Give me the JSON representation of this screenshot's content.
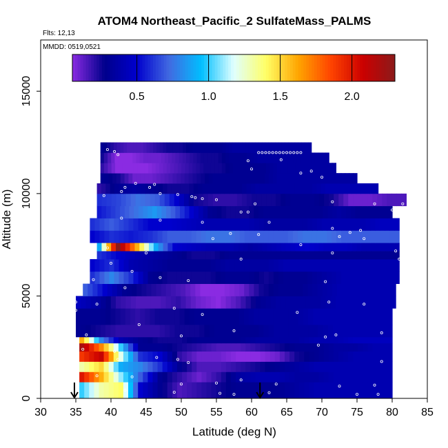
{
  "chart_data": {
    "type": "heatmap",
    "title": "ATOM4 Northeast_Pacific_2 SulfateMass_PALMS",
    "flights_label": "Flts: 12,13",
    "mmdd_label": "MMDD: 0519,0521",
    "xlabel": "Latitude (deg N)",
    "ylabel": "Altitude (m)",
    "xlim": [
      30,
      85
    ],
    "ylim": [
      0,
      17500
    ],
    "x_ticks": [
      "30",
      "35",
      "40",
      "45",
      "50",
      "55",
      "60",
      "65",
      "70",
      "75",
      "80",
      "85"
    ],
    "y_ticks": [
      "0",
      "5000",
      "10000",
      "15000"
    ],
    "colorbar": {
      "range": [
        0.05,
        2.3
      ],
      "ticks": [
        "0.5",
        "1.0",
        "1.5",
        "2.0"
      ],
      "tick_values": [
        0.5,
        1.0,
        1.5,
        2.0
      ],
      "colors": [
        "#8a2be2",
        "#00008b",
        "#0000cd",
        "#4169e1",
        "#00bfff",
        "#e0ffff",
        "#ffff66",
        "#ffa500",
        "#ff4500",
        "#cc0000",
        "#8b1a1a"
      ]
    },
    "arrows_latitude": [
      34.8,
      61.2
    ],
    "bins": [
      {
        "alt": [
          0,
          800
        ],
        "lat": [
          35.5,
          80
        ],
        "values": [
          1.0,
          1.3,
          1.4,
          0.5,
          0.3,
          0.15,
          0.2,
          0.25,
          0.3,
          0.3,
          0.3,
          0.35,
          0.4,
          0.4,
          0.4,
          0.4
        ]
      },
      {
        "alt": [
          800,
          1300
        ],
        "lat": [
          35.5,
          80
        ],
        "values": [
          2.0,
          1.6,
          1.1,
          0.7,
          0.3,
          0.2,
          0.1,
          0.2,
          0.35,
          0.4,
          0.4,
          0.35,
          0.35,
          0.4,
          0.4,
          0.4
        ]
      },
      {
        "alt": [
          1300,
          1800
        ],
        "lat": [
          35.5,
          80
        ],
        "values": [
          1.3,
          1.5,
          0.9,
          0.8,
          0.6,
          0.3,
          0.15,
          0.15,
          0.2,
          0.25,
          0.3,
          0.35,
          0.4,
          0.4,
          0.4,
          0.4
        ]
      },
      {
        "alt": [
          1800,
          2300
        ],
        "lat": [
          35.5,
          80
        ],
        "values": [
          1.9,
          2.1,
          1.2,
          0.6,
          0.5,
          0.2,
          0.1,
          0.1,
          0.05,
          0.05,
          0.1,
          0.25,
          0.3,
          0.35,
          0.4,
          0.4
        ]
      },
      {
        "alt": [
          2300,
          2700
        ],
        "lat": [
          35.5,
          80
        ],
        "values": [
          2.2,
          1.7,
          1.0,
          0.3,
          0.3,
          0.25,
          0.2,
          0.15,
          0.15,
          0.2,
          0.25,
          0.3,
          0.3,
          0.35,
          0.35,
          0.4
        ]
      },
      {
        "alt": [
          2700,
          3000
        ],
        "lat": [
          35.5,
          80
        ],
        "values": [
          1.6,
          0.8,
          0.4,
          0.3,
          0.25,
          0.25,
          0.3,
          0.3,
          0.3,
          0.35,
          0.35,
          0.35,
          0.4,
          0.4,
          0.45,
          0.45
        ]
      },
      {
        "alt": [
          3000,
          3600
        ],
        "lat": [
          35,
          80
        ],
        "values": [
          0.3,
          0.25,
          0.2,
          0.2,
          0.2,
          0.25,
          0.25,
          0.3,
          0.3,
          0.3,
          0.35,
          0.35,
          0.35,
          0.4,
          0.4,
          0.4
        ]
      },
      {
        "alt": [
          3600,
          4400
        ],
        "lat": [
          35,
          80
        ],
        "values": [
          0.3,
          0.3,
          0.25,
          0.2,
          0.25,
          0.25,
          0.3,
          0.3,
          0.3,
          0.35,
          0.35,
          0.35,
          0.4,
          0.4,
          0.4,
          0.4
        ]
      },
      {
        "alt": [
          4400,
          5000
        ],
        "lat": [
          35,
          80.5
        ],
        "values": [
          0.45,
          0.35,
          0.2,
          0.15,
          0.15,
          0.2,
          0.1,
          0.05,
          0.15,
          0.3,
          0.35,
          0.35,
          0.35,
          0.4,
          0.4,
          0.4
        ]
      },
      {
        "alt": [
          5000,
          5600
        ],
        "lat": [
          36,
          80.5
        ],
        "values": [
          0.7,
          0.5,
          0.3,
          0.25,
          0.2,
          0.15,
          0.05,
          0.05,
          0.1,
          0.25,
          0.3,
          0.3,
          0.35,
          0.4,
          0.4,
          0.4
        ]
      },
      {
        "alt": [
          5600,
          6200
        ],
        "lat": [
          37,
          81
        ],
        "values": [
          0.6,
          0.8,
          0.6,
          0.3,
          0.25,
          0.25,
          0.25,
          0.3,
          0.3,
          0.25,
          0.3,
          0.3,
          0.35,
          0.4,
          0.4,
          0.4
        ]
      },
      {
        "alt": [
          6200,
          6800
        ],
        "lat": [
          37,
          81
        ],
        "values": [
          0.5,
          0.6,
          0.4,
          0.35,
          0.3,
          0.3,
          0.3,
          0.35,
          0.35,
          0.35,
          0.4,
          0.4,
          0.4,
          0.4,
          0.4,
          0.4
        ]
      },
      {
        "alt": [
          6800,
          7200
        ],
        "lat": [
          38,
          81
        ],
        "values": [
          0.6,
          0.5,
          0.4,
          0.35,
          0.3,
          0.25,
          0.25,
          0.3,
          0.3,
          0.3,
          0.3,
          0.3,
          0.3,
          0.3,
          0.3,
          0.3
        ]
      },
      {
        "alt": [
          7200,
          7600
        ],
        "lat": [
          38,
          81
        ],
        "values": [
          0.9,
          2.3,
          1.6,
          0.9,
          0.5,
          0.45,
          0.4,
          0.4,
          0.35,
          0.4,
          0.45,
          0.5,
          0.45,
          0.45,
          0.4,
          0.4
        ]
      },
      {
        "alt": [
          7600,
          8200
        ],
        "lat": [
          37,
          81
        ],
        "values": [
          0.5,
          0.6,
          0.55,
          0.6,
          0.7,
          0.7,
          0.75,
          0.75,
          0.7,
          0.7,
          0.7,
          0.75,
          0.75,
          0.7,
          0.7,
          0.7
        ]
      },
      {
        "alt": [
          8200,
          8800
        ],
        "lat": [
          37,
          81
        ],
        "values": [
          0.6,
          0.7,
          0.6,
          0.5,
          0.5,
          0.45,
          0.4,
          0.4,
          0.4,
          0.35,
          0.35,
          0.35,
          0.4,
          0.4,
          0.4,
          0.45
        ]
      },
      {
        "alt": [
          8800,
          9400
        ],
        "lat": [
          38,
          80
        ],
        "values": [
          0.55,
          0.65,
          0.75,
          0.85,
          0.7,
          0.5,
          0.3,
          0.25,
          0.25,
          0.3,
          0.3,
          0.3,
          0.3,
          0.35,
          0.3,
          0.3
        ]
      },
      {
        "alt": [
          9400,
          10000
        ],
        "lat": [
          38,
          82
        ],
        "values": [
          0.6,
          0.65,
          0.75,
          0.7,
          0.5,
          0.25,
          0.2,
          0.2,
          0.25,
          0.25,
          0.3,
          0.3,
          0.25,
          0.1,
          0.1,
          0.15
        ]
      },
      {
        "alt": [
          10000,
          10500
        ],
        "lat": [
          38,
          78
        ],
        "values": [
          0.2,
          0.3,
          0.35,
          0.3,
          0.25,
          0.25,
          0.3,
          0.3,
          0.3,
          0.35,
          0.35,
          0.35,
          0.35,
          0.4,
          0.4,
          0.4
        ]
      },
      {
        "alt": [
          10500,
          11000
        ],
        "lat": [
          38.5,
          75
        ],
        "values": [
          0.3,
          0.25,
          0.1,
          0.1,
          0.15,
          0.2,
          0.25,
          0.3,
          0.3,
          0.3,
          0.3,
          0.35,
          0.35,
          0.35,
          0.35,
          0.35
        ]
      },
      {
        "alt": [
          11000,
          11500
        ],
        "lat": [
          38.5,
          72
        ],
        "values": [
          0.2,
          0.05,
          0.05,
          0.05,
          0.1,
          0.15,
          0.2,
          0.25,
          0.25,
          0.3,
          0.3,
          0.3,
          0.35,
          0.35,
          0.35,
          0.35
        ]
      },
      {
        "alt": [
          11500,
          12000
        ],
        "lat": [
          38.5,
          71
        ],
        "values": [
          0.25,
          0.05,
          0.05,
          0.1,
          0.1,
          0.15,
          0.2,
          0.25,
          0.25,
          0.3,
          0.3,
          0.35,
          0.35,
          0.35,
          0.35,
          0.35
        ]
      },
      {
        "alt": [
          12000,
          12500
        ],
        "lat": [
          38.5,
          68.5
        ],
        "values": [
          0.3,
          0.2,
          0.15,
          0.15,
          0.2,
          0.25,
          0.25,
          0.3,
          0.3,
          0.3,
          0.35,
          0.35,
          0.35,
          0.35,
          0.35,
          0.35
        ]
      }
    ],
    "points": [
      [
        39.5,
        12150
      ],
      [
        40.5,
        12050
      ],
      [
        41.0,
        11900
      ],
      [
        61.0,
        12000
      ],
      [
        61.5,
        12000
      ],
      [
        62.0,
        12000
      ],
      [
        62.5,
        12000
      ],
      [
        63.0,
        12000
      ],
      [
        63.5,
        12000
      ],
      [
        64.0,
        12000
      ],
      [
        64.5,
        12000
      ],
      [
        65.0,
        12000
      ],
      [
        65.5,
        12000
      ],
      [
        66.0,
        12000
      ],
      [
        66.5,
        12000
      ],
      [
        67.0,
        12000
      ],
      [
        59.5,
        11600
      ],
      [
        64.2,
        11650
      ],
      [
        60.0,
        11200
      ],
      [
        68.5,
        11100
      ],
      [
        67.0,
        11000
      ],
      [
        70.0,
        10800
      ],
      [
        42.0,
        10300
      ],
      [
        43.5,
        10500
      ],
      [
        45.5,
        10300
      ],
      [
        46.2,
        10450
      ],
      [
        41.5,
        10100
      ],
      [
        47.0,
        10000
      ],
      [
        39.0,
        9900
      ],
      [
        49.5,
        9950
      ],
      [
        51.5,
        9850
      ],
      [
        52.0,
        9800
      ],
      [
        53.0,
        9750
      ],
      [
        55.0,
        9700
      ],
      [
        60.5,
        9500
      ],
      [
        71.5,
        9600
      ],
      [
        77.5,
        9500
      ],
      [
        81.5,
        9500
      ],
      [
        58.5,
        9100
      ],
      [
        59.5,
        9100
      ],
      [
        80.0,
        9200
      ],
      [
        41.5,
        8800
      ],
      [
        47.0,
        8700
      ],
      [
        53.0,
        8600
      ],
      [
        62.5,
        8600
      ],
      [
        71.5,
        8300
      ],
      [
        75.5,
        8200
      ],
      [
        74.0,
        8100
      ],
      [
        57.0,
        8050
      ],
      [
        61.0,
        8000
      ],
      [
        72.5,
        7900
      ],
      [
        76.0,
        7800
      ],
      [
        54.5,
        7800
      ],
      [
        67.0,
        7500
      ],
      [
        80.5,
        7200
      ],
      [
        39.5,
        7350
      ],
      [
        45.0,
        7100
      ],
      [
        71.5,
        7100
      ],
      [
        81.0,
        6800
      ],
      [
        58.5,
        6800
      ],
      [
        40.0,
        6600
      ],
      [
        43.0,
        6200
      ],
      [
        47.0,
        5900
      ],
      [
        51.0,
        5750
      ],
      [
        70.5,
        5700
      ],
      [
        37.5,
        5800
      ],
      [
        42.0,
        5400
      ],
      [
        35.5,
        5100
      ],
      [
        35.0,
        4700
      ],
      [
        38.0,
        4600
      ],
      [
        35.0,
        4300
      ],
      [
        49.0,
        4400
      ],
      [
        71.0,
        4700
      ],
      [
        76.0,
        4600
      ],
      [
        53.0,
        4100
      ],
      [
        66.5,
        4200
      ],
      [
        44.0,
        3600
      ],
      [
        36.5,
        3100
      ],
      [
        50.0,
        3050
      ],
      [
        57.5,
        3300
      ],
      [
        70.5,
        3000
      ],
      [
        72.0,
        3100
      ],
      [
        78.5,
        3200
      ],
      [
        36.0,
        2400
      ],
      [
        40.5,
        2300
      ],
      [
        69.5,
        2600
      ],
      [
        41.0,
        1900
      ],
      [
        46.5,
        2000
      ],
      [
        49.5,
        1900
      ],
      [
        51.0,
        1750
      ],
      [
        35.0,
        1700
      ],
      [
        78.5,
        1800
      ],
      [
        38.0,
        1100
      ],
      [
        43.0,
        1050
      ],
      [
        50.0,
        700
      ],
      [
        55.0,
        750
      ],
      [
        58.5,
        900
      ],
      [
        63.5,
        700
      ],
      [
        72.5,
        600
      ],
      [
        77.5,
        650
      ],
      [
        42.0,
        400
      ],
      [
        49.0,
        300
      ],
      [
        55.5,
        250
      ],
      [
        57.5,
        200
      ],
      [
        62.5,
        280
      ],
      [
        75.0,
        200
      ],
      [
        78.0,
        200
      ]
    ]
  }
}
